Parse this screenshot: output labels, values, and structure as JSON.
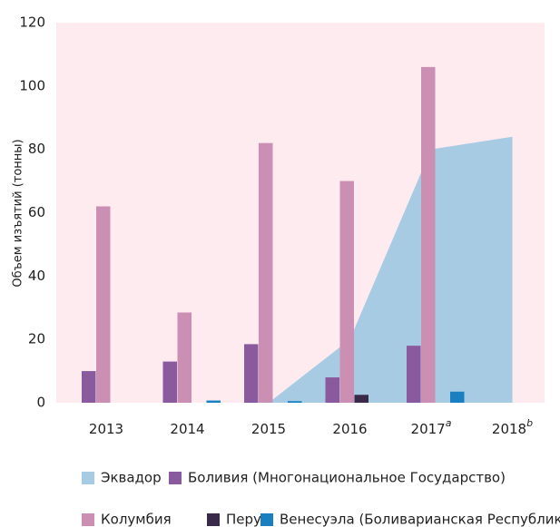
{
  "chart_data": {
    "type": "bar",
    "y_label": "Объем изъятий (тонны)",
    "categories": [
      "2013",
      "2014",
      "2015",
      "2016",
      "2017",
      "2018"
    ],
    "category_notes": [
      null,
      null,
      null,
      null,
      "a",
      "b"
    ],
    "ylim": [
      0,
      120
    ],
    "yticks": [
      0,
      20,
      40,
      60,
      80,
      100,
      120
    ],
    "background": "#fdebf0",
    "series": [
      {
        "name": "Эквадор",
        "type": "area",
        "color": "#a8cbe4",
        "values": [
          null,
          null,
          0,
          20,
          80,
          84
        ]
      },
      {
        "name": "Боливия (Многонациональное Государство)",
        "type": "bar",
        "color": "#8a5a9e",
        "values": [
          10,
          13,
          18.5,
          8,
          18,
          null
        ]
      },
      {
        "name": "Колумбия",
        "type": "bar",
        "color": "#cc8fb4",
        "values": [
          62,
          28.5,
          82,
          70,
          106,
          null
        ]
      },
      {
        "name": "Перу",
        "type": "bar",
        "color": "#3a2a4a",
        "values": [
          null,
          null,
          null,
          2.5,
          null,
          null
        ]
      },
      {
        "name": "Венесуэла (Боливарианская Республика)",
        "type": "bar",
        "color": "#1a7fc1",
        "values": [
          null,
          0.7,
          0.5,
          null,
          3.5,
          null
        ]
      }
    ]
  }
}
